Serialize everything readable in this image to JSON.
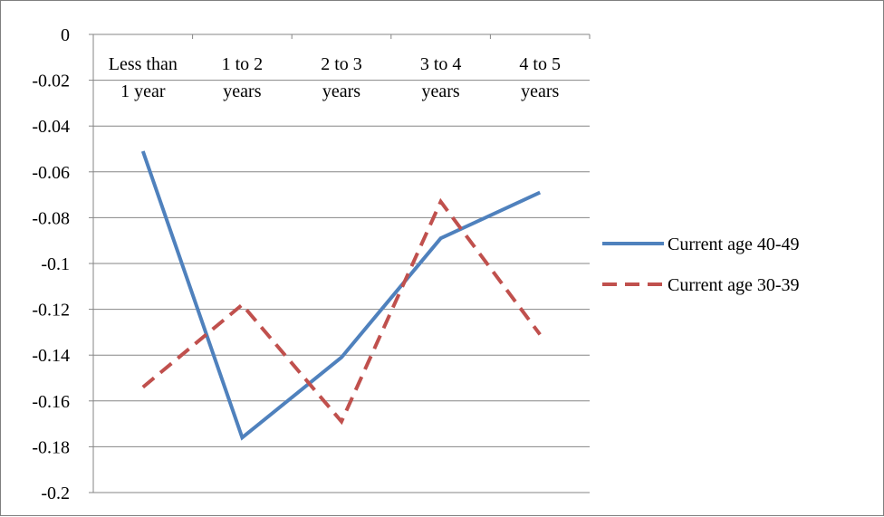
{
  "chart_data": {
    "type": "line",
    "categories": [
      [
        "Less than",
        "1 year"
      ],
      [
        "1 to 2",
        "years"
      ],
      [
        "2 to 3",
        "years"
      ],
      [
        "3 to 4",
        "years"
      ],
      [
        "4 to 5",
        "years"
      ]
    ],
    "series": [
      {
        "name": "Current age 40-49",
        "values": [
          -0.051,
          -0.176,
          -0.141,
          -0.089,
          -0.069
        ],
        "color": "#4f81bd",
        "style": "solid"
      },
      {
        "name": "Current age 30-39",
        "values": [
          -0.154,
          -0.118,
          -0.169,
          -0.073,
          -0.131
        ],
        "color": "#c0504d",
        "style": "dashed"
      }
    ],
    "ylim": [
      -0.2,
      0
    ],
    "yticks": [
      0,
      -0.02,
      -0.04,
      -0.06,
      -0.08,
      -0.1,
      -0.12,
      -0.14,
      -0.16,
      -0.18,
      -0.2
    ],
    "ytick_labels": [
      "0",
      "-0.02",
      "-0.04",
      "-0.06",
      "-0.08",
      "-0.1",
      "-0.12",
      "-0.14",
      "-0.16",
      "-0.18",
      "-0.2"
    ],
    "grid": "horizontal",
    "gridline_color": "#868686",
    "axis_color": "#868686",
    "legend_position": "right",
    "title": "",
    "xlabel": "",
    "ylabel": ""
  }
}
